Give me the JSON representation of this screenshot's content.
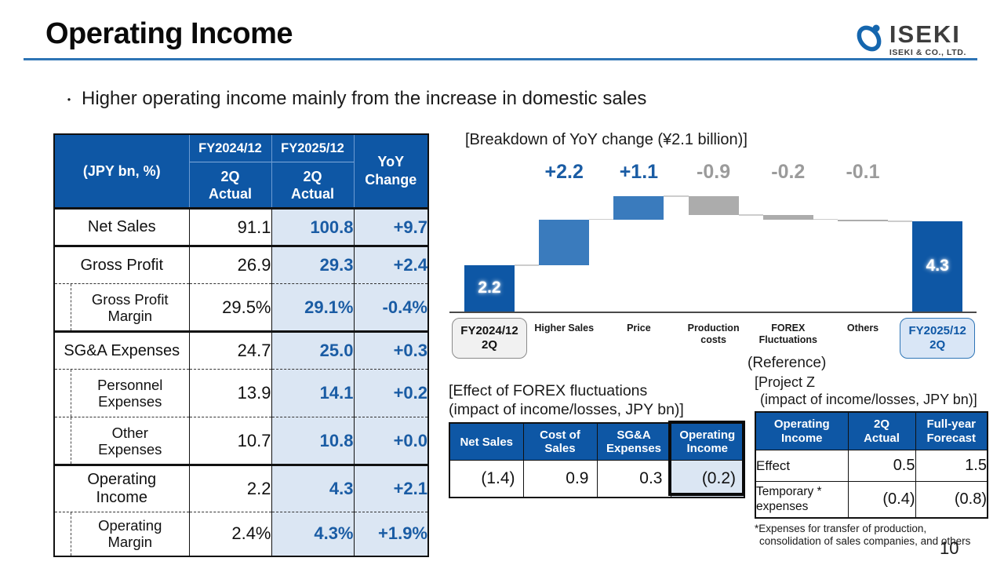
{
  "slide": {
    "title": "Operating Income",
    "bullet_marker": "・",
    "bullet": "Higher operating income mainly from the increase in domestic sales",
    "page_number": "10"
  },
  "logo": {
    "name": "ISEKI",
    "subtitle": "ISEKI & CO., LTD."
  },
  "main_table": {
    "unit_label": "(JPY bn, %)",
    "col_year_1": "FY2024/12",
    "col_year_2": "FY2025/12",
    "col_sub_1": "2Q\nActual",
    "col_sub_2": "2Q\nActual",
    "col_yoy": "YoY\nChange",
    "rows": [
      {
        "label": "Net Sales",
        "indent": false,
        "sep": "",
        "fy2024": "91.1",
        "fy2025": "100.8",
        "yoy": "+9.7"
      },
      {
        "label": "Gross Profit",
        "indent": false,
        "sep": "thick",
        "fy2024": "26.9",
        "fy2025": "29.3",
        "yoy": "+2.4"
      },
      {
        "label": "Gross Profit\nMargin",
        "indent": true,
        "sep": "dashed",
        "fy2024": "29.5%",
        "fy2025": "29.1%",
        "yoy": "-0.4%"
      },
      {
        "label": "SG&A Expenses",
        "indent": false,
        "sep": "thick",
        "fy2024": "24.7",
        "fy2025": "25.0",
        "yoy": "+0.3"
      },
      {
        "label": "Personnel\nExpenses",
        "indent": true,
        "sep": "dashed",
        "fy2024": "13.9",
        "fy2025": "14.1",
        "yoy": "+0.2"
      },
      {
        "label": "Other\nExpenses",
        "indent": true,
        "sep": "dashed",
        "fy2024": "10.7",
        "fy2025": "10.8",
        "yoy": "+0.0"
      },
      {
        "label": "Operating\nIncome",
        "indent": false,
        "sep": "thick",
        "fy2024": "2.2",
        "fy2025": "4.3",
        "yoy": "+2.1"
      },
      {
        "label": "Operating\nMargin",
        "indent": true,
        "sep": "dashed",
        "fy2024": "2.4%",
        "fy2025": "4.3%",
        "yoy": "+1.9%"
      }
    ]
  },
  "chart_data": {
    "type": "bar",
    "subtype": "waterfall",
    "title": "[Breakdown of YoY change (¥2.1 billion)]",
    "categories": [
      "FY2024/12\n2Q",
      "Higher Sales",
      "Price",
      "Production\ncosts",
      "FOREX\nFluctuations",
      "Others",
      "FY2025/12\n2Q"
    ],
    "values": [
      2.2,
      2.2,
      1.1,
      -0.9,
      -0.2,
      -0.1,
      4.3
    ],
    "roles": [
      "total",
      "delta",
      "delta",
      "delta",
      "delta",
      "delta",
      "total"
    ],
    "bar_labels": [
      "2.2",
      "+2.2",
      "+1.1",
      "-0.9",
      "-0.2",
      "-0.1",
      "4.3"
    ],
    "ylim": [
      0,
      6
    ],
    "grid": false,
    "colors": {
      "total": "#0E57A5",
      "positive": "#3A7BBD",
      "negative": "#ACACAC",
      "label_positive": "#1A5CA4",
      "label_negative": "#9B9B9B"
    }
  },
  "forex_table": {
    "title": "[Effect of FOREX fluctuations\n(impact of income/losses, JPY bn)]",
    "headers": [
      "Net Sales",
      "Cost of\nSales",
      "SG&A\nExpenses",
      "Operating\nIncome"
    ],
    "values": [
      "(1.4)",
      "0.9",
      "0.3",
      "(0.2)"
    ]
  },
  "project_table": {
    "caption": "(Reference)",
    "title_line1": "[Project Z",
    "title_line2": "(impact of income/losses, JPY bn)]",
    "headers": [
      "Operating\nIncome",
      "2Q\nActual",
      "Full-year\nForecast"
    ],
    "rows": [
      {
        "label": "Effect",
        "q2": "0.5",
        "forecast": "1.5"
      },
      {
        "label": "Temporary *\nexpenses",
        "q2": "(0.4)",
        "forecast": "(0.8)"
      }
    ]
  },
  "footnote": {
    "line1": "*Expenses for transfer of production,",
    "line2": "consolidation of sales companies, and others"
  }
}
